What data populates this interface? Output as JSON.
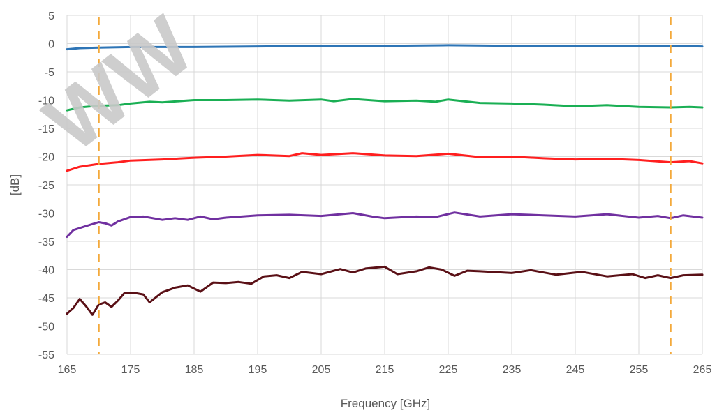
{
  "chart_data": {
    "type": "line",
    "title": "",
    "xlabel": "Frequency [GHz]",
    "ylabel": "[dB]",
    "xlim": [
      165,
      265
    ],
    "ylim": [
      -55,
      5
    ],
    "xticks": [
      165,
      175,
      185,
      195,
      205,
      215,
      225,
      235,
      245,
      255,
      265
    ],
    "yticks": [
      5,
      0,
      -5,
      -10,
      -15,
      -20,
      -25,
      -30,
      -35,
      -40,
      -45,
      -50,
      -55
    ],
    "grid": true,
    "legend": "none",
    "vertical_markers": [
      {
        "x": 170,
        "color": "#f4a93a",
        "style": "dashed"
      },
      {
        "x": 260,
        "color": "#f4a93a",
        "style": "dashed"
      }
    ],
    "watermark": "WW",
    "series": [
      {
        "color": "#2e75b6",
        "x": [
          165,
          167,
          170,
          175,
          180,
          185,
          195,
          205,
          215,
          225,
          235,
          245,
          255,
          260,
          265
        ],
        "y": [
          -1.0,
          -0.8,
          -0.7,
          -0.6,
          -0.6,
          -0.6,
          -0.5,
          -0.4,
          -0.4,
          -0.3,
          -0.4,
          -0.4,
          -0.4,
          -0.4,
          -0.5
        ]
      },
      {
        "color": "#1aaf54",
        "x": [
          165,
          167,
          170,
          173,
          175,
          178,
          180,
          185,
          190,
          195,
          200,
          205,
          207,
          210,
          215,
          220,
          223,
          225,
          230,
          235,
          240,
          245,
          250,
          255,
          260,
          263,
          265
        ],
        "y": [
          -11.8,
          -11.3,
          -11.0,
          -10.9,
          -10.6,
          -10.3,
          -10.4,
          -10.0,
          -10.0,
          -9.9,
          -10.1,
          -9.9,
          -10.2,
          -9.8,
          -10.2,
          -10.1,
          -10.3,
          -9.9,
          -10.5,
          -10.6,
          -10.8,
          -11.1,
          -10.9,
          -11.2,
          -11.3,
          -11.2,
          -11.3
        ]
      },
      {
        "color": "#ff1f1f",
        "x": [
          165,
          167,
          170,
          173,
          175,
          180,
          185,
          190,
          195,
          200,
          202,
          205,
          210,
          215,
          220,
          225,
          230,
          235,
          240,
          245,
          250,
          255,
          260,
          263,
          265
        ],
        "y": [
          -22.5,
          -21.8,
          -21.3,
          -21.0,
          -20.7,
          -20.5,
          -20.2,
          -20.0,
          -19.7,
          -19.9,
          -19.4,
          -19.7,
          -19.4,
          -19.8,
          -19.9,
          -19.5,
          -20.1,
          -20.0,
          -20.3,
          -20.5,
          -20.4,
          -20.6,
          -21.0,
          -20.8,
          -21.2
        ]
      },
      {
        "color": "#7030a0",
        "x": [
          165,
          166,
          168,
          170,
          171,
          172,
          173,
          175,
          177,
          180,
          182,
          184,
          186,
          188,
          190,
          195,
          200,
          205,
          210,
          213,
          215,
          220,
          223,
          226,
          230,
          235,
          240,
          245,
          250,
          255,
          258,
          260,
          262,
          265
        ],
        "y": [
          -34.2,
          -33.0,
          -32.3,
          -31.6,
          -31.8,
          -32.2,
          -31.5,
          -30.7,
          -30.6,
          -31.2,
          -30.9,
          -31.2,
          -30.6,
          -31.1,
          -30.8,
          -30.4,
          -30.3,
          -30.5,
          -30.0,
          -30.6,
          -30.9,
          -30.6,
          -30.7,
          -29.9,
          -30.6,
          -30.2,
          -30.4,
          -30.6,
          -30.2,
          -30.8,
          -30.5,
          -30.9,
          -30.4,
          -30.8
        ]
      },
      {
        "color": "#5a1016",
        "x": [
          165,
          166,
          167,
          168,
          169,
          170,
          171,
          172,
          173,
          174,
          176,
          177,
          178,
          180,
          182,
          184,
          186,
          188,
          190,
          192,
          194,
          196,
          198,
          200,
          202,
          205,
          208,
          210,
          212,
          215,
          217,
          220,
          222,
          224,
          226,
          228,
          230,
          235,
          238,
          242,
          246,
          250,
          254,
          256,
          258,
          260,
          262,
          265
        ],
        "y": [
          -47.8,
          -46.8,
          -45.2,
          -46.5,
          -48.0,
          -46.2,
          -45.8,
          -46.6,
          -45.5,
          -44.2,
          -44.2,
          -44.4,
          -45.8,
          -44.0,
          -43.2,
          -42.8,
          -43.9,
          -42.3,
          -42.4,
          -42.2,
          -42.5,
          -41.2,
          -41.0,
          -41.5,
          -40.4,
          -40.8,
          -39.9,
          -40.5,
          -39.8,
          -39.5,
          -40.8,
          -40.3,
          -39.6,
          -40.0,
          -41.1,
          -40.2,
          -40.3,
          -40.6,
          -40.1,
          -40.9,
          -40.4,
          -41.2,
          -40.8,
          -41.5,
          -41.0,
          -41.5,
          -41.0,
          -40.9
        ]
      }
    ]
  }
}
